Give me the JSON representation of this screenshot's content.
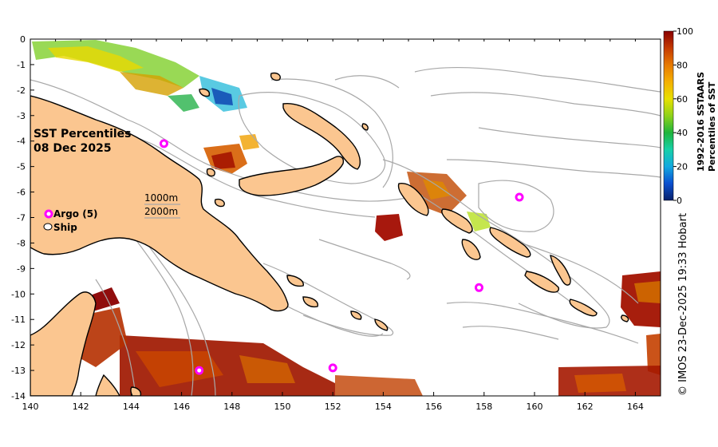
{
  "map": {
    "title_line1": "SST Percentiles",
    "title_line2": "08 Dec 2025",
    "x_ticks": [
      "140",
      "142",
      "144",
      "146",
      "148",
      "150",
      "152",
      "154",
      "156",
      "158",
      "160",
      "162",
      "164"
    ],
    "y_ticks": [
      "0",
      "-1",
      "-2",
      "-3",
      "-4",
      "-5",
      "-6",
      "-7",
      "-8",
      "-9",
      "-10",
      "-11",
      "-12",
      "-13",
      "-14"
    ],
    "depth_legend": [
      "1000m",
      "2000m"
    ],
    "legend": {
      "argo_label": "Argo (5)",
      "ship_label": "Ship"
    },
    "argo_floats": [
      {
        "lon": 145.3,
        "lat": -4.1
      },
      {
        "lon": 159.4,
        "lat": -6.2
      },
      {
        "lon": 157.8,
        "lat": -9.75
      },
      {
        "lon": 146.7,
        "lat": -13.0
      },
      {
        "lon": 152.0,
        "lat": -12.9
      }
    ],
    "colors": {
      "land": "#fbc690",
      "argo": "#ff00ff",
      "contour": "#a8a8a8"
    }
  },
  "colorbar": {
    "ticks": [
      "100",
      "80",
      "60",
      "40",
      "20",
      "0"
    ],
    "title_line1": "1992-2016 SSTAARS",
    "title_line2": "Percentiles of SST",
    "stops": [
      "#08206a",
      "#0a4fd0",
      "#12a9e0",
      "#17d0a8",
      "#1eb43c",
      "#8fd21a",
      "#e8e000",
      "#f4b000",
      "#e77a00",
      "#c43a00",
      "#8a0000"
    ]
  },
  "credit": "© IMOS 23-Dec-2025 19:33 Hobart"
}
